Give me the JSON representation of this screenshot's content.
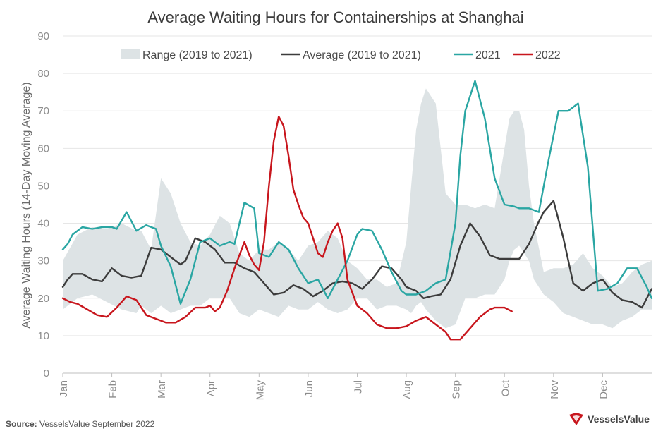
{
  "chart_data": {
    "type": "line",
    "title": "Average Waiting Hours for Containerships at Shanghai",
    "ylabel": "Average Waiting Hours (14-Day Moving Average)",
    "xlabel": "",
    "ylim": [
      0,
      90
    ],
    "yticks": [
      0,
      10,
      20,
      30,
      40,
      50,
      60,
      70,
      80,
      90
    ],
    "xlim": [
      0,
      12
    ],
    "months": [
      "Jan",
      "Feb",
      "Mar",
      "Apr",
      "May",
      "Jun",
      "Jul",
      "Aug",
      "Sep",
      "Oct",
      "Nov",
      "Dec"
    ],
    "grid": "horizontal",
    "legend_position": "top",
    "legend": [
      "Range (2019 to 2021)",
      "Average (2019 to 2021)",
      "2021",
      "2022"
    ],
    "colors": {
      "range": "#dde3e5",
      "average": "#3c3c3c",
      "y2021": "#2aa6a3",
      "y2022": "#c8161d"
    },
    "range": {
      "x": [
        0,
        0.3,
        0.6,
        0.9,
        1.2,
        1.5,
        1.6,
        1.8,
        2.0,
        2.2,
        2.4,
        2.6,
        2.8,
        3.0,
        3.2,
        3.4,
        3.6,
        3.8,
        4.0,
        4.2,
        4.4,
        4.6,
        4.8,
        5.0,
        5.2,
        5.4,
        5.6,
        5.8,
        6.0,
        6.2,
        6.4,
        6.6,
        6.8,
        7.0,
        7.1,
        7.2,
        7.3,
        7.4,
        7.6,
        7.8,
        8.0,
        8.2,
        8.4,
        8.6,
        8.8,
        9.0,
        9.1,
        9.2,
        9.3,
        9.4,
        9.5,
        9.6,
        9.8,
        10.0,
        10.2,
        10.4,
        10.6,
        10.8,
        11.0,
        11.2,
        11.4,
        11.6,
        11.8,
        12.0
      ],
      "high": [
        30,
        37,
        39,
        38.5,
        40,
        38,
        38,
        33,
        52,
        48,
        40,
        35,
        34,
        37,
        42,
        40,
        32,
        30,
        33,
        33,
        35,
        33,
        30,
        34,
        35,
        38,
        36,
        30,
        28,
        25,
        25,
        23,
        24,
        35,
        50,
        65,
        72,
        76,
        72,
        48,
        45,
        45,
        44,
        45,
        44,
        60,
        68,
        70,
        70,
        65,
        50,
        40,
        27,
        28,
        28,
        29,
        32,
        28,
        26,
        23,
        24,
        27,
        29,
        30
      ],
      "low": [
        17,
        20,
        21,
        19,
        17,
        16,
        18,
        16,
        18,
        16,
        17,
        18,
        18,
        20,
        20,
        20,
        16,
        15,
        17,
        16,
        15,
        18,
        17,
        17,
        19,
        17,
        16,
        17,
        20,
        20,
        17,
        18,
        18,
        17,
        16,
        18,
        19,
        17,
        14,
        12,
        13,
        20,
        20,
        21,
        21,
        25,
        30,
        33,
        34,
        32,
        30,
        25,
        21,
        19,
        16,
        15,
        14,
        13,
        13,
        12,
        14,
        15,
        17,
        17
      ]
    },
    "series": [
      {
        "name": "Average (2019 to 2021)",
        "x": [
          0,
          0.1,
          0.2,
          0.4,
          0.6,
          0.8,
          1.0,
          1.2,
          1.4,
          1.6,
          1.8,
          2.0,
          2.2,
          2.4,
          2.5,
          2.7,
          2.9,
          3.1,
          3.3,
          3.5,
          3.7,
          3.9,
          4.1,
          4.3,
          4.5,
          4.7,
          4.9,
          5.1,
          5.3,
          5.5,
          5.7,
          5.9,
          6.1,
          6.3,
          6.5,
          6.7,
          6.9,
          7.0,
          7.2,
          7.35,
          7.5,
          7.7,
          7.9,
          8.1,
          8.3,
          8.5,
          8.7,
          8.9,
          9.1,
          9.3,
          9.5,
          9.7,
          9.8,
          10.0,
          10.2,
          10.4,
          10.6,
          10.8,
          11.0,
          11.2,
          11.4,
          11.6,
          11.8,
          12.0
        ],
        "values": [
          23,
          25,
          26.5,
          26.5,
          25,
          24.5,
          28,
          26,
          25.5,
          26,
          33.5,
          33,
          31,
          29,
          30,
          36,
          35,
          33,
          29.5,
          29.5,
          28,
          27,
          24,
          21,
          21.5,
          23.5,
          22.5,
          20.5,
          22,
          24,
          24.5,
          24,
          22.5,
          25,
          28.5,
          28,
          25,
          23,
          22,
          20,
          20.5,
          21,
          25,
          34,
          40,
          36.5,
          31.5,
          30.5,
          30.5,
          30.5,
          34.5,
          40.5,
          43,
          46,
          36,
          24,
          22,
          24,
          25,
          21.5,
          19.5,
          19,
          17.5,
          22.5
        ]
      },
      {
        "name": "2021",
        "x": [
          0,
          0.1,
          0.2,
          0.4,
          0.6,
          0.8,
          1.0,
          1.1,
          1.3,
          1.5,
          1.7,
          1.9,
          2.0,
          2.2,
          2.4,
          2.6,
          2.8,
          3.0,
          3.2,
          3.4,
          3.5,
          3.7,
          3.9,
          4.0,
          4.2,
          4.4,
          4.6,
          4.8,
          5.0,
          5.2,
          5.4,
          5.6,
          5.8,
          6.0,
          6.1,
          6.3,
          6.5,
          6.7,
          6.9,
          7.0,
          7.2,
          7.4,
          7.6,
          7.8,
          8.0,
          8.1,
          8.2,
          8.4,
          8.6,
          8.8,
          9.0,
          9.2,
          9.3,
          9.5,
          9.7,
          9.9,
          10.1,
          10.3,
          10.5,
          10.7,
          10.9,
          11.1,
          11.3,
          11.5,
          11.7,
          11.9,
          12.0
        ],
        "values": [
          33,
          34.5,
          37,
          39,
          38.5,
          39,
          39,
          38.5,
          43,
          38,
          39.5,
          38.5,
          34,
          28.5,
          18.5,
          25,
          35,
          36,
          34,
          35,
          34.5,
          45.5,
          44,
          32,
          31,
          35,
          33,
          28,
          24,
          25,
          20,
          25,
          30,
          37,
          38.5,
          38,
          33,
          27,
          22,
          21,
          21,
          22,
          24,
          25,
          40,
          58,
          70,
          78,
          68,
          52,
          45,
          44.5,
          44,
          44,
          43,
          57,
          70,
          70,
          72,
          55,
          22,
          22.5,
          24,
          28,
          28,
          23,
          20
        ]
      },
      {
        "name": "2022",
        "x": [
          0,
          0.15,
          0.3,
          0.5,
          0.7,
          0.9,
          1.1,
          1.3,
          1.5,
          1.7,
          1.9,
          2.1,
          2.3,
          2.5,
          2.7,
          2.9,
          3.0,
          3.1,
          3.2,
          3.35,
          3.5,
          3.7,
          3.8,
          3.9,
          4.0,
          4.1,
          4.2,
          4.3,
          4.4,
          4.5,
          4.6,
          4.7,
          4.8,
          4.9,
          5.0,
          5.1,
          5.2,
          5.3,
          5.4,
          5.5,
          5.6,
          5.7,
          5.8,
          6.0,
          6.2,
          6.4,
          6.6,
          6.8,
          7.0,
          7.2,
          7.4,
          7.6,
          7.8,
          7.9,
          8.1,
          8.3,
          8.5,
          8.7,
          8.8,
          9.0,
          9.15
        ],
        "values": [
          20,
          19,
          18.5,
          17,
          15.5,
          15,
          17.5,
          20.5,
          19.5,
          15.5,
          14.5,
          13.5,
          13.5,
          15,
          17.5,
          17.5,
          18,
          16.5,
          17.5,
          22,
          28,
          35,
          31.5,
          29,
          27.5,
          35,
          50,
          62,
          68.5,
          66,
          58,
          49,
          45,
          41.5,
          40,
          36,
          32,
          31,
          35,
          38,
          40,
          36,
          25,
          18,
          16,
          13,
          12,
          12,
          12.5,
          14,
          15,
          13,
          11,
          9,
          9,
          12,
          15,
          17,
          17.5,
          17.5,
          16.5
        ]
      }
    ]
  },
  "footer": {
    "source_label": "Source:",
    "source_text": " VesselsValue September 2022",
    "logo_text": "VesselsValue"
  }
}
